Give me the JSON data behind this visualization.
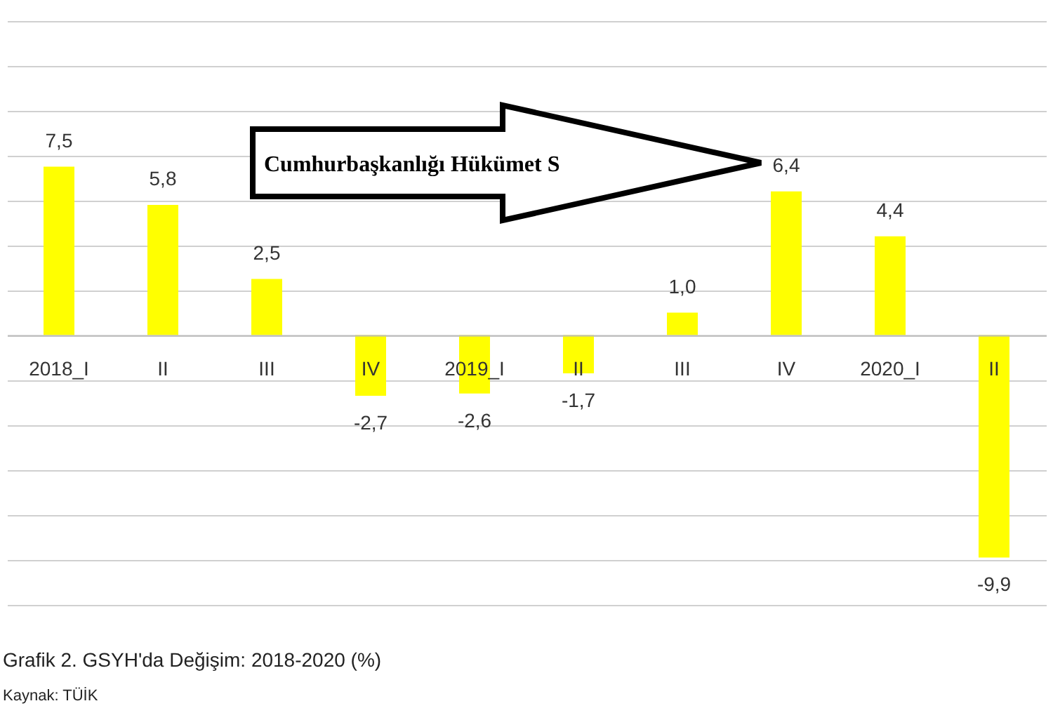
{
  "chart_data": {
    "type": "bar",
    "title": "Grafik 2. GSYH'da Değişim: 2018-2020 (%)",
    "categories": [
      "2018_I",
      "II",
      "III",
      "IV",
      "2019_I",
      "II",
      "III",
      "IV",
      "2020_I",
      "II"
    ],
    "values": [
      7.5,
      5.8,
      2.5,
      -2.7,
      -2.6,
      -1.7,
      1.0,
      6.4,
      4.4,
      -9.9
    ],
    "value_labels": [
      "7,5",
      "5,8",
      "2,5",
      "-2,7",
      "-2,6",
      "-1,7",
      "1,0",
      "6,4",
      "4,4",
      "-9,9"
    ],
    "color": "#ffff00",
    "ylim": [
      -13.2,
      14.8
    ],
    "yticks": [
      {
        "value": -12,
        "label": null
      },
      {
        "value": -10,
        "label": null
      },
      {
        "value": -8,
        "label": null
      },
      {
        "value": -6,
        "label": null
      },
      {
        "value": -4,
        "label": null
      },
      {
        "value": -2,
        "label": null
      },
      {
        "value": 0,
        "label": null
      },
      {
        "value": 2,
        "label": null
      },
      {
        "value": 4,
        "label": null
      },
      {
        "value": 6,
        "label": null
      },
      {
        "value": 8,
        "label": null
      },
      {
        "value": 10,
        "label": null
      },
      {
        "value": 12,
        "label": null
      },
      {
        "value": 14,
        "label": null
      }
    ],
    "grid": "y",
    "tick_labels": "x",
    "annotations": [
      "Cumhurbaşkanlığı Hükümet S",
      "Kaynak: TÜİK"
    ]
  }
}
